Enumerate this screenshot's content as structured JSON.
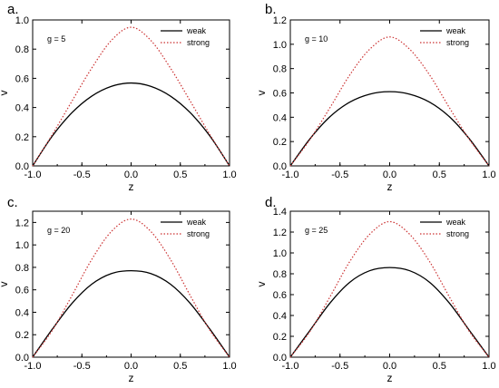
{
  "chart_data": [
    {
      "panel_label": "a.",
      "type": "line",
      "annotation": "g = 5",
      "xlabel": "z",
      "ylabel": "v",
      "xlim": [
        -1.0,
        1.0
      ],
      "ylim": [
        0.0,
        1.0
      ],
      "xticks": [
        "-1.0",
        "-0.5",
        "0.0",
        "0.5",
        "1.0"
      ],
      "yticks": [
        "0.0",
        "0.2",
        "0.4",
        "0.6",
        "0.8",
        "1.0"
      ],
      "legend": "top-right",
      "series": [
        {
          "name": "weak",
          "color": "#000000",
          "style": "solid",
          "x": [
            -1.0,
            -0.8,
            -0.6,
            -0.4,
            -0.2,
            0.0,
            0.2,
            0.4,
            0.6,
            0.8,
            1.0
          ],
          "y": [
            0.0,
            0.205,
            0.365,
            0.478,
            0.545,
            0.568,
            0.545,
            0.478,
            0.365,
            0.205,
            0.0
          ]
        },
        {
          "name": "strong",
          "color": "#cc3333",
          "style": "dotted",
          "x": [
            -1.0,
            -0.8,
            -0.6,
            -0.4,
            -0.2,
            0.0,
            0.2,
            0.4,
            0.6,
            0.8,
            1.0
          ],
          "y": [
            0.0,
            0.215,
            0.445,
            0.67,
            0.86,
            0.95,
            0.86,
            0.67,
            0.445,
            0.215,
            0.0
          ]
        }
      ]
    },
    {
      "panel_label": "b.",
      "type": "line",
      "annotation": "g = 10",
      "xlabel": "z",
      "ylabel": "v",
      "xlim": [
        -1.0,
        1.0
      ],
      "ylim": [
        0.0,
        1.2
      ],
      "xticks": [
        "-1.0",
        "-0.5",
        "0.0",
        "0.5",
        "1.0"
      ],
      "yticks": [
        "0.0",
        "0.2",
        "0.4",
        "0.6",
        "0.8",
        "1.0",
        "1.2"
      ],
      "legend": "top-right",
      "series": [
        {
          "name": "weak",
          "color": "#000000",
          "style": "solid",
          "x": [
            -1.0,
            -0.8,
            -0.6,
            -0.4,
            -0.2,
            0.0,
            0.2,
            0.4,
            0.6,
            0.8,
            1.0
          ],
          "y": [
            0.0,
            0.225,
            0.405,
            0.525,
            0.59,
            0.61,
            0.59,
            0.525,
            0.405,
            0.225,
            0.0
          ]
        },
        {
          "name": "strong",
          "color": "#cc3333",
          "style": "dotted",
          "x": [
            -1.0,
            -0.8,
            -0.6,
            -0.4,
            -0.2,
            0.0,
            0.2,
            0.4,
            0.6,
            0.8,
            1.0
          ],
          "y": [
            0.0,
            0.22,
            0.48,
            0.75,
            0.96,
            1.06,
            0.96,
            0.75,
            0.48,
            0.22,
            0.0
          ]
        }
      ]
    },
    {
      "panel_label": "c.",
      "type": "line",
      "annotation": "g = 20",
      "xlabel": "z",
      "ylabel": "v",
      "xlim": [
        -1.0,
        1.0
      ],
      "ylim": [
        0.0,
        1.3
      ],
      "xticks": [
        "-1.0",
        "-0.5",
        "0.0",
        "0.5",
        "1.0"
      ],
      "yticks": [
        "0.0",
        "0.2",
        "0.4",
        "0.6",
        "0.8",
        "1.0",
        "1.2"
      ],
      "legend": "top-right",
      "series": [
        {
          "name": "weak",
          "color": "#000000",
          "style": "solid",
          "x": [
            -1.0,
            -0.8,
            -0.6,
            -0.4,
            -0.2,
            0.0,
            0.2,
            0.4,
            0.6,
            0.8,
            1.0
          ],
          "y": [
            0.0,
            0.25,
            0.48,
            0.65,
            0.745,
            0.77,
            0.745,
            0.65,
            0.48,
            0.25,
            0.0
          ]
        },
        {
          "name": "strong",
          "color": "#cc3333",
          "style": "dotted",
          "x": [
            -1.0,
            -0.8,
            -0.6,
            -0.4,
            -0.2,
            0.0,
            0.2,
            0.4,
            0.6,
            0.8,
            1.0
          ],
          "y": [
            0.0,
            0.24,
            0.55,
            0.87,
            1.12,
            1.23,
            1.12,
            0.87,
            0.55,
            0.24,
            0.0
          ]
        }
      ]
    },
    {
      "panel_label": "d.",
      "type": "line",
      "annotation": "g = 25",
      "xlabel": "z",
      "ylabel": "v",
      "xlim": [
        -1.0,
        1.0
      ],
      "ylim": [
        0.0,
        1.4
      ],
      "xticks": [
        "-1.0",
        "-0.5",
        "0.0",
        "0.5",
        "1.0"
      ],
      "yticks": [
        "0.0",
        "0.2",
        "0.4",
        "0.6",
        "0.8",
        "1.0",
        "1.2",
        "1.4"
      ],
      "legend": "top-right",
      "series": [
        {
          "name": "weak",
          "color": "#000000",
          "style": "solid",
          "x": [
            -1.0,
            -0.8,
            -0.6,
            -0.4,
            -0.2,
            0.0,
            0.2,
            0.4,
            0.6,
            0.8,
            1.0
          ],
          "y": [
            0.0,
            0.26,
            0.52,
            0.72,
            0.83,
            0.86,
            0.83,
            0.72,
            0.52,
            0.26,
            0.0
          ]
        },
        {
          "name": "strong",
          "color": "#cc3333",
          "style": "dotted",
          "x": [
            -1.0,
            -0.8,
            -0.6,
            -0.4,
            -0.2,
            0.0,
            0.2,
            0.4,
            0.6,
            0.8,
            1.0
          ],
          "y": [
            0.0,
            0.25,
            0.58,
            0.92,
            1.18,
            1.3,
            1.18,
            0.92,
            0.58,
            0.25,
            0.0
          ]
        }
      ]
    }
  ]
}
